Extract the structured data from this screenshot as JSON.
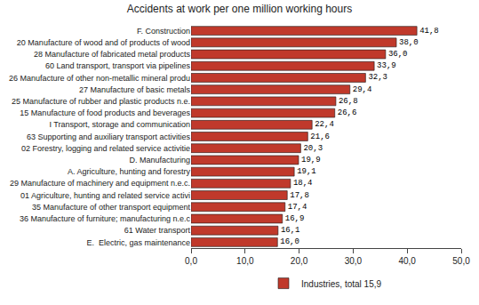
{
  "chart_data": {
    "type": "bar",
    "orientation": "horizontal",
    "title": "Accidents at work per one million working hours",
    "categories": [
      "E.  Electric, gas maintenance",
      "61 Water transport",
      "36 Manufacture of furniture; manufacturing n.e.c",
      "35 Manufacture of other transport equipment",
      "01 Agriculture, hunting and related service activi",
      "29 Manufacture of machinery and equipment n.e.c.",
      "A. Agriculture, hunting and forestry",
      "D. Manufacturing",
      "02 Forestry, logging and related service activitie",
      "63 Supporting and auxiliary transport activities",
      "I Transport, storage and communication",
      "15 Manufacture of food products and beverages",
      "25 Manufacture of rubber and plastic products n.e.",
      "27 Manufacture of basic metals",
      "26 Manufacture of other non-metallic mineral produ",
      "60 Land transport, transport via pipelines",
      "28 Manufacture of fabricated metal products",
      "20 Manufacture of wood and of products of wood",
      "F. Construction"
    ],
    "series": [
      {
        "name": "Industries, total 15,9",
        "color": "#c0392b",
        "values": [
          16.0,
          16.1,
          16.9,
          17.4,
          17.8,
          18.4,
          19.1,
          19.9,
          20.3,
          21.6,
          22.4,
          26.6,
          26.8,
          29.4,
          32.3,
          33.9,
          36.0,
          38.0,
          41.8
        ],
        "value_labels": [
          "16,0",
          "16,1",
          "16,9",
          "17,4",
          "17,8",
          "18,4",
          "19,1",
          "19,9",
          "20,3",
          "21,6",
          "22,4",
          "26,6",
          "26,8",
          "29,4",
          "32,3",
          "33,9",
          "36,0",
          "38,0",
          "41,8"
        ]
      }
    ],
    "xlim": [
      0,
      50
    ],
    "xticks": [
      {
        "value": 0,
        "label": "0,0"
      },
      {
        "value": 10,
        "label": "10,0"
      },
      {
        "value": 20,
        "label": "20,0"
      },
      {
        "value": 30,
        "label": "30,0"
      },
      {
        "value": 40,
        "label": "40,0"
      },
      {
        "value": 50,
        "label": "50,0"
      }
    ],
    "data_labels": true,
    "grid": false,
    "legend": "bottom"
  }
}
